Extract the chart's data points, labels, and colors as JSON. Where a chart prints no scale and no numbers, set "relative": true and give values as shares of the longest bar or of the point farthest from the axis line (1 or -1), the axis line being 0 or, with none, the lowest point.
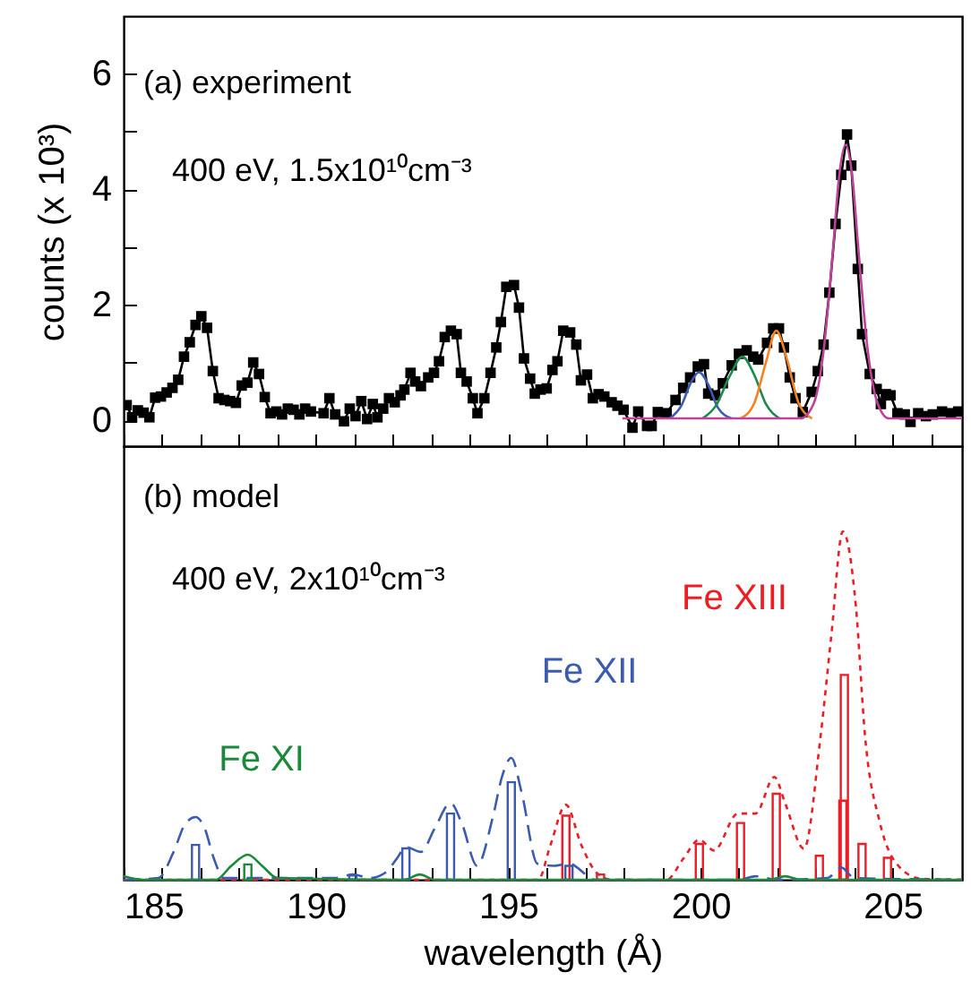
{
  "chart_data": [
    {
      "type": "line",
      "ylabel": "counts (x 10³)",
      "annotations": [
        "(a) experiment",
        "400 eV, 1.5x10¹⁰cm⁻³"
      ],
      "xlim": [
        185,
        206.8
      ],
      "xticks": [
        185,
        {
          "value": 186,
          "label": null
        },
        {
          "value": 187,
          "label": null
        },
        {
          "value": 188,
          "label": null
        },
        {
          "value": 189,
          "label": null
        },
        190,
        {
          "value": 191,
          "label": null
        },
        {
          "value": 192,
          "label": null
        },
        {
          "value": 193,
          "label": null
        },
        {
          "value": 194,
          "label": null
        },
        195,
        {
          "value": 196,
          "label": null
        },
        {
          "value": 197,
          "label": null
        },
        {
          "value": 198,
          "label": null
        },
        {
          "value": 199,
          "label": null
        },
        200,
        {
          "value": 201,
          "label": null
        },
        {
          "value": 202,
          "label": null
        },
        {
          "value": 203,
          "label": null
        },
        {
          "value": 204,
          "label": null
        },
        205,
        {
          "value": 206,
          "label": null
        }
      ],
      "ylim": [
        -0.45,
        7
      ],
      "yticks": [
        0,
        {
          "value": 1,
          "label": null
        },
        2,
        {
          "value": 3,
          "label": null
        },
        4,
        {
          "value": 5,
          "label": null
        },
        6
      ],
      "tick_labels": "y",
      "marker": "square",
      "line_style": "solid",
      "series": [
        {
          "color": "#000000",
          "x": [
            185.08,
            185.22,
            185.37,
            185.52,
            185.67,
            185.82,
            185.97,
            186.12,
            186.27,
            186.42,
            186.57,
            186.72,
            186.87,
            187.02,
            187.17,
            187.32,
            187.47,
            187.62,
            187.77,
            187.92,
            188.07,
            188.22,
            188.37,
            188.52,
            188.67,
            188.82,
            188.97,
            189.12,
            189.27,
            189.42,
            189.57,
            189.72,
            189.87,
            190.2,
            190.35,
            190.5,
            190.73,
            190.88,
            191.03,
            191.18,
            191.33,
            191.48,
            191.6,
            191.75,
            191.9,
            192.05,
            192.2,
            192.3,
            192.46,
            192.58,
            192.73,
            192.92,
            193.07,
            193.2,
            193.35,
            193.51,
            193.66,
            193.77,
            193.92,
            194.08,
            194.2,
            194.38,
            194.54,
            194.69,
            194.81,
            194.95,
            195.15,
            195.28,
            195.41,
            195.57,
            195.69,
            195.84,
            196.0,
            196.15,
            196.28,
            196.43,
            196.61,
            196.77,
            196.89,
            197.05,
            197.2,
            197.35,
            197.5,
            197.69,
            197.84,
            198.0,
            198.23,
            198.38,
            198.61,
            198.73,
            198.89,
            199.12,
            199.35,
            199.55,
            199.73,
            199.93,
            200.09,
            200.2,
            200.38,
            200.58,
            200.81,
            201.0,
            201.2,
            201.37,
            201.5,
            201.73,
            201.89,
            202.04,
            202.17,
            202.32,
            202.47,
            202.66,
            202.89,
            203.05,
            203.2,
            203.35,
            203.51,
            203.66,
            203.81,
            203.92,
            204.09,
            204.2,
            204.4,
            204.58,
            204.69,
            204.82,
            204.94,
            205.12,
            205.31,
            205.46,
            205.66,
            205.86,
            206.04,
            206.28,
            206.51,
            206.7
          ],
          "values": [
            0.26,
            0.05,
            0.17,
            0.13,
            0.05,
            0.39,
            0.41,
            0.48,
            0.56,
            0.7,
            1.1,
            1.35,
            1.65,
            1.8,
            1.6,
            0.85,
            0.38,
            0.35,
            0.33,
            0.3,
            0.6,
            0.65,
            1.0,
            0.8,
            0.4,
            0.12,
            0.15,
            0.1,
            0.2,
            0.18,
            0.1,
            0.2,
            0.15,
            0.12,
            0.38,
            0.1,
            -0.02,
            0.2,
            0.07,
            0.33,
            0.02,
            0.28,
            0.05,
            0.2,
            0.38,
            0.31,
            0.43,
            0.53,
            0.82,
            0.67,
            0.59,
            0.74,
            0.82,
            1.02,
            1.44,
            1.55,
            1.49,
            0.82,
            0.67,
            0.38,
            0.12,
            0.38,
            0.82,
            1.26,
            1.7,
            2.31,
            2.34,
            1.95,
            1.07,
            0.72,
            0.46,
            0.53,
            0.55,
            0.87,
            1.02,
            1.55,
            1.52,
            1.31,
            0.69,
            0.79,
            0.38,
            0.45,
            0.41,
            0.31,
            0.25,
            0.18,
            -0.13,
            0.15,
            -0.1,
            -0.1,
            0.14,
            0.12,
            0.35,
            0.56,
            0.74,
            0.93,
            0.97,
            0.46,
            0.43,
            0.64,
            0.95,
            1.15,
            1.21,
            1.1,
            1.05,
            1.34,
            1.59,
            1.59,
            1.26,
            0.74,
            0.38,
            0.14,
            0.49,
            0.85,
            1.31,
            2.21,
            3.4,
            4.25,
            4.95,
            4.41,
            2.62,
            1.49,
            0.8,
            0.54,
            0.28,
            0.45,
            0.43,
            0.12,
            0.1,
            -0.03,
            0.12,
            0.07,
            0.1,
            0.15,
            0.12,
            0.15
          ]
        },
        {
          "type": "line",
          "marker": "none",
          "color": "#3a5bb0",
          "x": [
            199.2,
            199.5,
            199.75,
            199.96,
            200.2,
            200.45,
            200.8
          ],
          "values": [
            0.03,
            0.25,
            0.65,
            0.83,
            0.62,
            0.22,
            0.03
          ]
        },
        {
          "type": "line",
          "marker": "none",
          "color": "#1a8a4a",
          "x": [
            200.05,
            200.4,
            200.75,
            201.09,
            201.4,
            201.7,
            202.05
          ],
          "values": [
            0.03,
            0.25,
            0.75,
            1.1,
            0.78,
            0.28,
            0.03
          ]
        },
        {
          "type": "line",
          "marker": "none",
          "color": "#f5821f",
          "x": [
            201.05,
            201.4,
            201.7,
            201.97,
            202.25,
            202.55,
            202.9
          ],
          "values": [
            0.03,
            0.3,
            1.0,
            1.55,
            1.05,
            0.3,
            0.03
          ]
        },
        {
          "type": "line",
          "marker": "none",
          "color": "#c0409a",
          "x": [
            197.97,
            202.6,
            202.95,
            203.2,
            203.45,
            203.6,
            203.77,
            203.95,
            204.1,
            204.35,
            204.6,
            204.9,
            206.8
          ],
          "values": [
            0.03,
            0.03,
            0.3,
            1.2,
            3.0,
            4.2,
            4.77,
            4.2,
            3.0,
            1.2,
            0.3,
            0.03,
            0.03
          ]
        }
      ]
    },
    {
      "type": "line",
      "relative": true,
      "xlabel": "wavelength (Å)",
      "annotations": [
        "(b) model",
        "400 eV, 2x10¹⁰cm⁻³"
      ],
      "xlim": [
        185,
        206.8
      ],
      "xticks": [
        185,
        {
          "value": 186,
          "label": null
        },
        {
          "value": 187,
          "label": null
        },
        {
          "value": 188,
          "label": null
        },
        {
          "value": 189,
          "label": null
        },
        190,
        {
          "value": 191,
          "label": null
        },
        {
          "value": 192,
          "label": null
        },
        {
          "value": 193,
          "label": null
        },
        {
          "value": 194,
          "label": null
        },
        195,
        {
          "value": 196,
          "label": null
        },
        {
          "value": 197,
          "label": null
        },
        {
          "value": 198,
          "label": null
        },
        {
          "value": 199,
          "label": null
        },
        200,
        {
          "value": 201,
          "label": null
        },
        {
          "value": 202,
          "label": null
        },
        {
          "value": 203,
          "label": null
        },
        {
          "value": 204,
          "label": null
        },
        205,
        {
          "value": 206,
          "label": null
        }
      ],
      "tick_labels": "x",
      "series": [
        {
          "name": "Fe XIII",
          "color": "#ee1c24",
          "line_style": "dotted",
          "x": [
            185,
            195.78,
            196.1,
            196.5,
            196.9,
            197.3,
            197.7,
            199.12,
            199.55,
            199.97,
            200.35,
            200.97,
            201.43,
            201.92,
            202.2,
            202.69,
            203.12,
            203.4,
            203.7,
            204.04,
            204.28,
            204.66,
            205.12,
            205.74,
            206.8
          ],
          "values": [
            0,
            0,
            0.1,
            0.215,
            0.1,
            0.02,
            0,
            0,
            0.06,
            0.115,
            0.084,
            0.19,
            0.19,
            0.295,
            0.22,
            0.089,
            0.41,
            0.7,
            1.0,
            0.785,
            0.41,
            0.166,
            0.043,
            0.003,
            0
          ]
        },
        {
          "type": "bar",
          "color": "#ee1c24",
          "x": [
            196.5,
            197.4,
            199.97,
            201.04,
            201.97,
            203.09,
            203.7,
            203.74,
            204.2,
            204.86
          ],
          "values": [
            0.184,
            0.015,
            0.103,
            0.163,
            0.247,
            0.069,
            0.227,
            0.588,
            0.103,
            0.063
          ]
        },
        {
          "name": "Fe XII",
          "color": "#3a5bb0",
          "line_style": "dashed",
          "x": [
            185,
            185.9,
            186.3,
            186.6,
            186.87,
            187.1,
            187.35,
            187.6,
            190.5,
            190.96,
            191.4,
            191.8,
            192.1,
            192.34,
            192.73,
            193.1,
            193.5,
            193.8,
            194.19,
            194.6,
            194.85,
            195.08,
            195.35,
            195.76,
            196.19,
            196.58,
            197.27,
            201.0,
            201.43,
            202.0,
            203.3,
            203.66,
            204.0,
            206.8
          ],
          "values": [
            0,
            0.005,
            0.08,
            0.16,
            0.18,
            0.15,
            0.06,
            0.005,
            0.005,
            0.015,
            0.005,
            0.02,
            0.06,
            0.094,
            0.08,
            0.15,
            0.22,
            0.16,
            0.04,
            0.18,
            0.3,
            0.35,
            0.25,
            0.046,
            0.04,
            0.046,
            0,
            0,
            0.01,
            0,
            0.005,
            0.035,
            0.005,
            0
          ]
        },
        {
          "type": "bar",
          "color": "#3a5bb0",
          "x": [
            186.87,
            190.96,
            192.34,
            193.5,
            195.08,
            196.58
          ],
          "values": [
            0.1,
            0.012,
            0.09,
            0.19,
            0.28,
            0.04
          ]
        },
        {
          "name": "Fe XI",
          "color": "#1a8a3a",
          "line_style": "solid",
          "x": [
            185,
            185.5,
            187.4,
            187.8,
            188.23,
            188.6,
            189.0,
            192.3,
            192.7,
            193.1,
            201.8,
            202.2,
            202.6,
            206.8
          ],
          "values": [
            0.01,
            0,
            0,
            0.04,
            0.072,
            0.04,
            0.005,
            0,
            0.015,
            0,
            0,
            0.01,
            0,
            0
          ]
        },
        {
          "type": "bar",
          "color": "#1a8a3a",
          "x": [
            188.23
          ],
          "values": [
            0.044
          ]
        }
      ]
    }
  ]
}
